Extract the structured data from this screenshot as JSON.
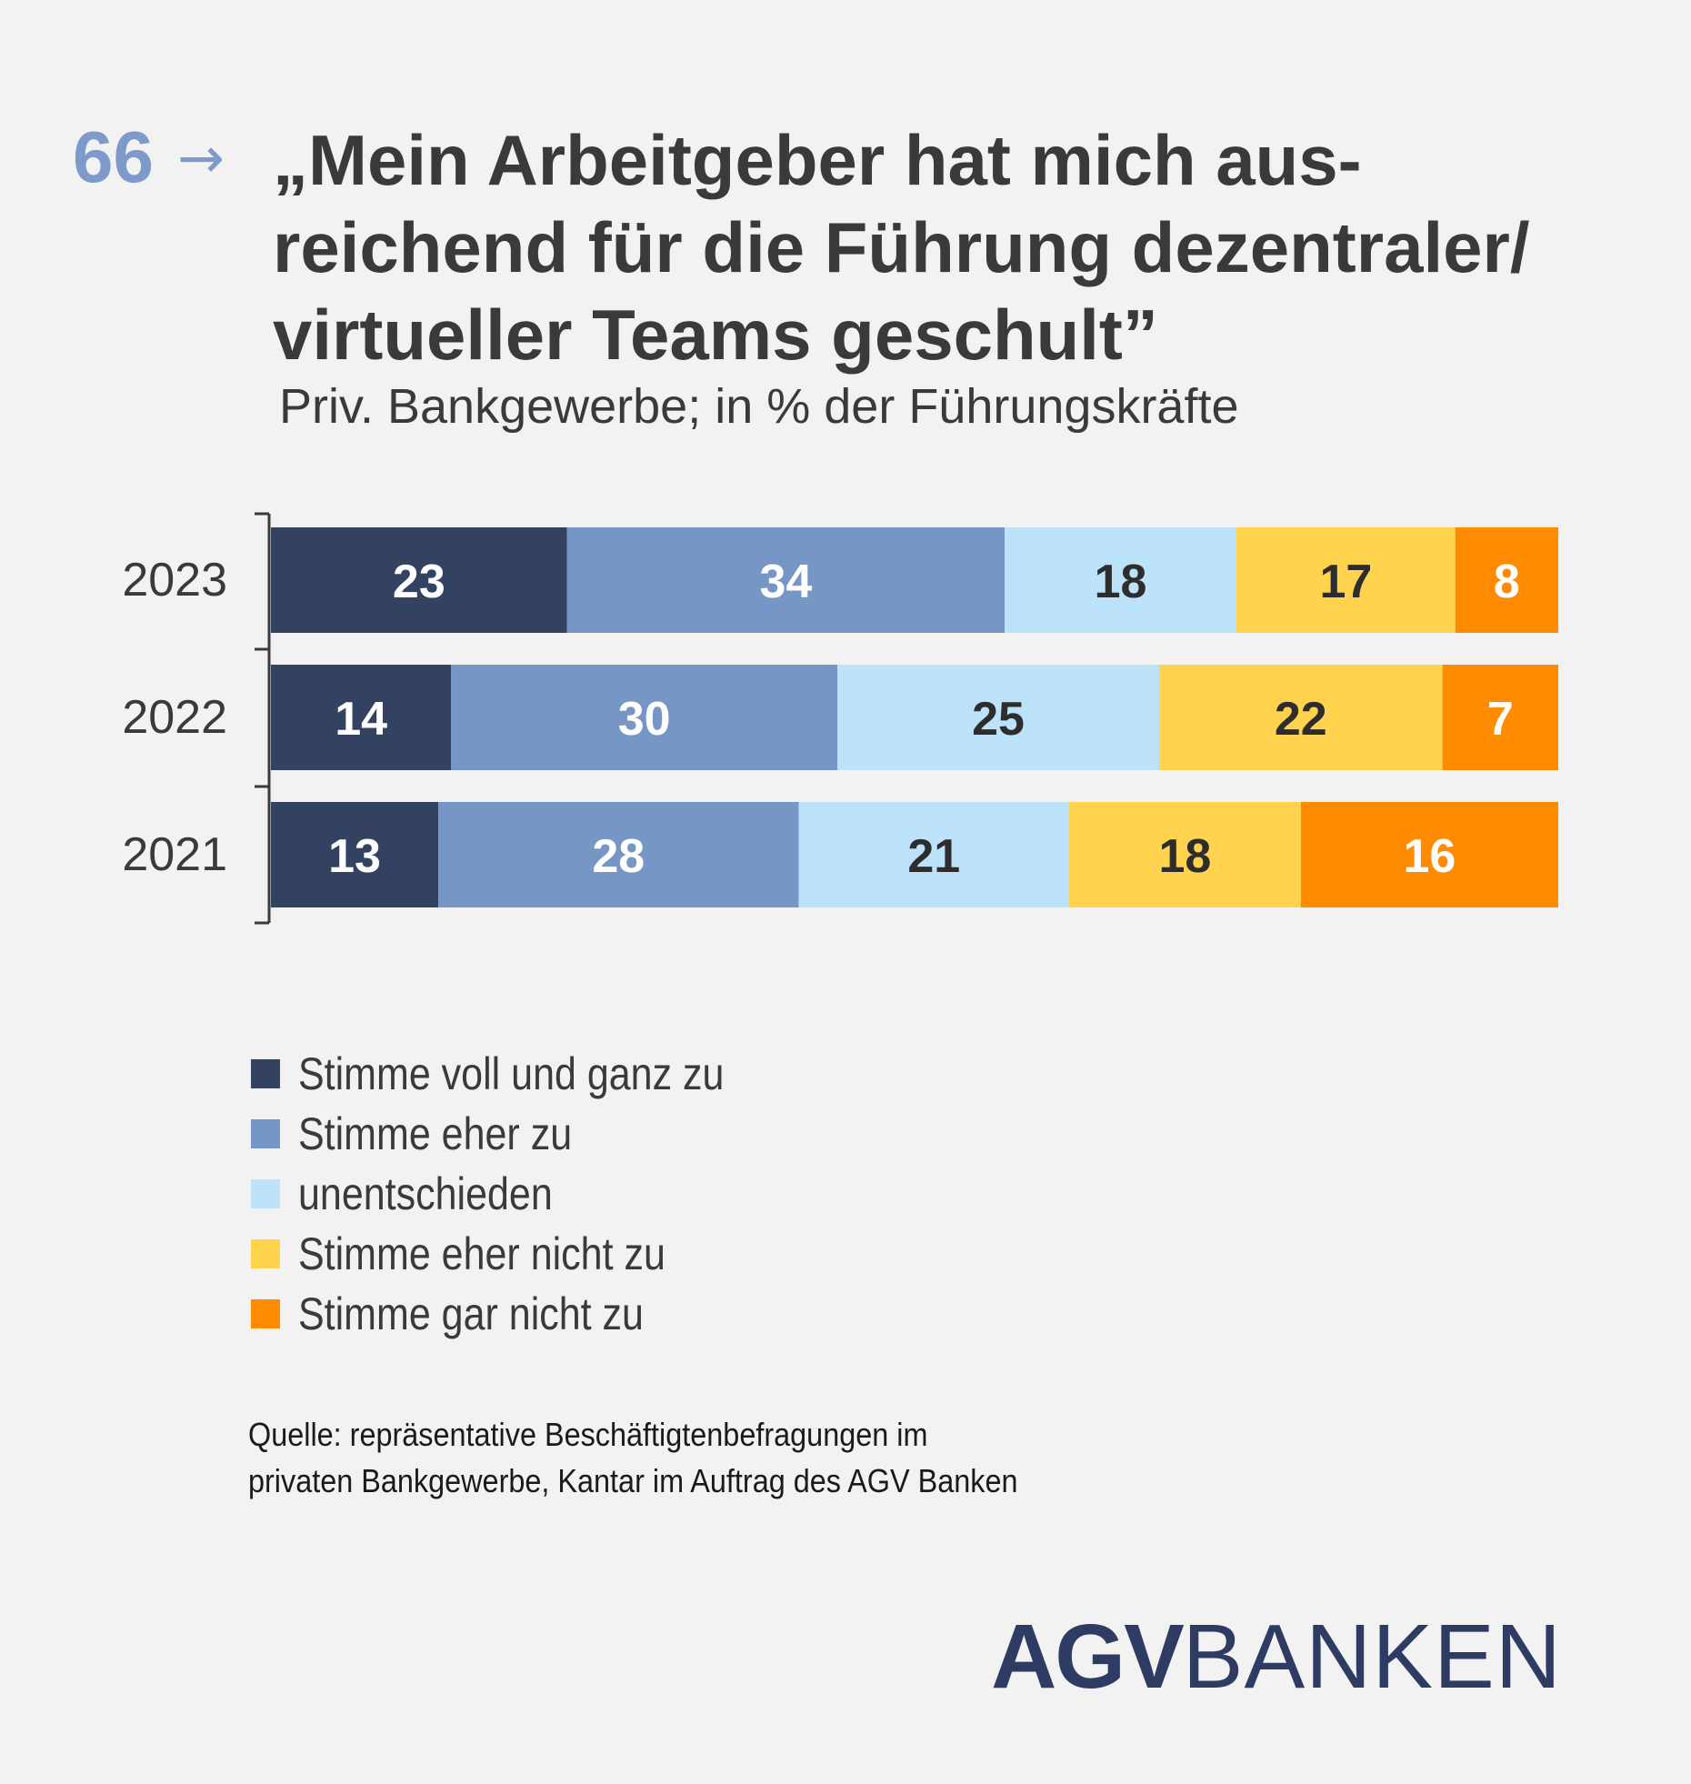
{
  "header": {
    "page_number": "66",
    "arrow": "→",
    "title_lines": [
      "„Mein Arbeitgeber hat mich aus-",
      "reichend für die Führung dezentraler/",
      "virtueller Teams geschult”"
    ],
    "subtitle": "Priv. Bankgewerbe; in % der Führungskräfte"
  },
  "chart_data": {
    "type": "bar",
    "orientation": "horizontal",
    "stacked": true,
    "title": "„Mein Arbeitgeber hat mich ausreichend für die Führung dezentraler/virtueller Teams geschult”",
    "subtitle": "Priv. Bankgewerbe; in % der Führungskräfte",
    "categories": [
      "2023",
      "2022",
      "2021"
    ],
    "series": [
      {
        "name": "Stimme voll und ganz zu",
        "color": "#334261",
        "label_color": "#ffffff",
        "values": [
          23,
          14,
          13
        ]
      },
      {
        "name": "Stimme eher zu",
        "color": "#7697c6",
        "label_color": "#ffffff",
        "values": [
          34,
          30,
          28
        ]
      },
      {
        "name": "unentschieden",
        "color": "#bde3fb",
        "label_color": "#2d2d2d",
        "values": [
          18,
          25,
          21
        ]
      },
      {
        "name": "Stimme eher nicht zu",
        "color": "#ffd34d",
        "label_color": "#2d2d2d",
        "values": [
          17,
          22,
          18
        ]
      },
      {
        "name": "Stimme gar nicht zu",
        "color": "#ff8c00",
        "label_color": "#ffffff",
        "values": [
          8,
          7,
          16
        ]
      }
    ],
    "xlim": [
      0,
      100
    ],
    "grid": false,
    "legend_position": "bottom-left"
  },
  "source": {
    "lines": [
      "Quelle: repräsentative Beschäftigtenbefragungen im",
      "privaten Bankgewerbe, Kantar im Auftrag des AGV Banken"
    ]
  },
  "logo": {
    "bold_part": "AGV",
    "thin_part": "BANKEN",
    "color": "#2e3b63"
  }
}
